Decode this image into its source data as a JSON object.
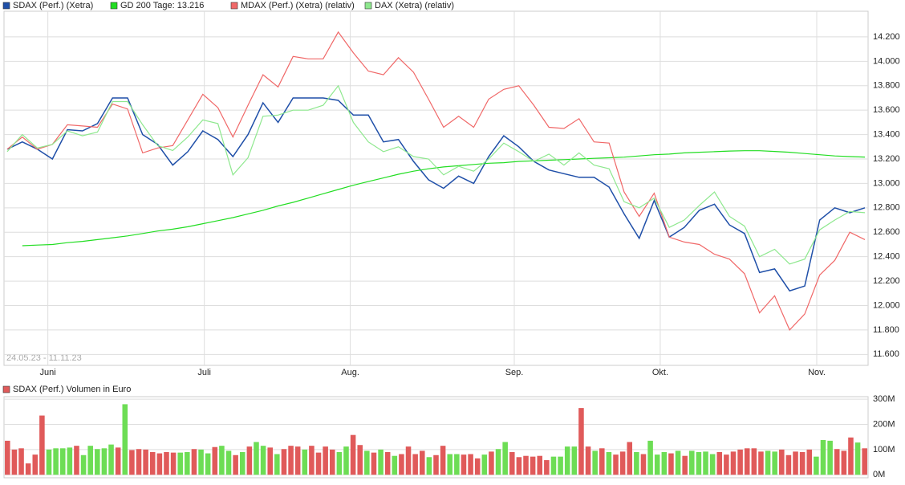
{
  "chart_data": [
    {
      "type": "line",
      "annotation": "24.05.23 - 11.11.23",
      "ylim": [
        11510,
        14410
      ],
      "yticks": [
        {
          "value": 11600,
          "label": "11.600"
        },
        {
          "value": 11800,
          "label": "11.800"
        },
        {
          "value": 12000,
          "label": "12.000"
        },
        {
          "value": 12200,
          "label": "12.200"
        },
        {
          "value": 12400,
          "label": "12.400"
        },
        {
          "value": 12600,
          "label": "12.600"
        },
        {
          "value": 12800,
          "label": "12.800"
        },
        {
          "value": 13000,
          "label": "13.000"
        },
        {
          "value": 13200,
          "label": "13.200"
        },
        {
          "value": 13400,
          "label": "13.400"
        },
        {
          "value": 13600,
          "label": "13.600"
        },
        {
          "value": 13800,
          "label": "13.800"
        },
        {
          "value": 14000,
          "label": "14.000"
        },
        {
          "value": 14200,
          "label": "14.200"
        }
      ],
      "xticks": [
        {
          "value": 2.7,
          "label": "Juni"
        },
        {
          "value": 13.1,
          "label": "Juli"
        },
        {
          "value": 22.8,
          "label": "Aug."
        },
        {
          "value": 33.7,
          "label": "Sep."
        },
        {
          "value": 43.4,
          "label": "Okt."
        },
        {
          "value": 53.8,
          "label": "Nov."
        }
      ],
      "grid": true,
      "series": [
        {
          "name": "SDAX (Perf.) (Xetra)",
          "color": "#1f4fa8",
          "values": [
            13280,
            13340,
            13280,
            13200,
            13440,
            13430,
            13490,
            13700,
            13700,
            13400,
            13320,
            13150,
            13260,
            13430,
            13360,
            13220,
            13400,
            13660,
            13500,
            13700,
            13700,
            13700,
            13680,
            13560,
            13560,
            13340,
            13360,
            13180,
            13030,
            12960,
            13060,
            13000,
            13220,
            13390,
            13300,
            13180,
            13110,
            13080,
            13050,
            13050,
            12970,
            12750,
            12550,
            12860,
            12560,
            12640,
            12780,
            12830,
            12660,
            12590,
            12270,
            12300,
            12120,
            12160,
            12700,
            12800,
            12760,
            12800
          ]
        },
        {
          "name": "GD 200 Tage: 13.216",
          "color": "#22dd22",
          "values": [
            null,
            12490,
            12495,
            12500,
            12515,
            12525,
            12540,
            12555,
            12570,
            12590,
            12610,
            12625,
            12645,
            12670,
            12695,
            12720,
            12750,
            12780,
            12815,
            12845,
            12880,
            12915,
            12950,
            12985,
            13015,
            13045,
            13075,
            13100,
            13120,
            13135,
            13145,
            13155,
            13165,
            13170,
            13180,
            13185,
            13190,
            13195,
            13200,
            13205,
            13210,
            13215,
            13225,
            13235,
            13240,
            13250,
            13255,
            13260,
            13265,
            13268,
            13268,
            13262,
            13255,
            13245,
            13235,
            13225,
            13220,
            13216
          ]
        },
        {
          "name": "MDAX (Perf.) (Xetra) (relativ)",
          "color": "#f06868",
          "values": [
            13280,
            13380,
            13280,
            13320,
            13480,
            13470,
            13460,
            13650,
            13610,
            13250,
            13290,
            13310,
            13520,
            13730,
            13620,
            13380,
            13640,
            13890,
            13790,
            14040,
            14020,
            14020,
            14240,
            14070,
            13920,
            13890,
            14030,
            13910,
            13690,
            13460,
            13550,
            13460,
            13690,
            13770,
            13800,
            13640,
            13460,
            13450,
            13530,
            13340,
            13330,
            12930,
            12730,
            12920,
            12560,
            12520,
            12500,
            12420,
            12380,
            12260,
            11940,
            12080,
            11800,
            11930,
            12250,
            12370,
            12600,
            12540
          ]
        },
        {
          "name": "DAX (Xetra) (relativ)",
          "color": "#8ee88e",
          "values": [
            13260,
            13400,
            13290,
            13320,
            13430,
            13390,
            13420,
            13670,
            13670,
            13480,
            13310,
            13270,
            13380,
            13520,
            13490,
            13070,
            13210,
            13550,
            13560,
            13600,
            13600,
            13640,
            13800,
            13500,
            13340,
            13260,
            13300,
            13220,
            13200,
            13070,
            13140,
            13100,
            13200,
            13330,
            13260,
            13180,
            13240,
            13150,
            13250,
            13150,
            13120,
            12850,
            12800,
            12880,
            12640,
            12700,
            12820,
            12930,
            12730,
            12650,
            12400,
            12460,
            12340,
            12380,
            12620,
            12700,
            12770,
            12760
          ]
        }
      ]
    },
    {
      "type": "bar",
      "series": [
        {
          "name": "SDAX (Perf.) Volumen in Euro",
          "color": "#e05a5a",
          "values": [
            135,
            100,
            105,
            45,
            80,
            235,
            100,
            105,
            105,
            108,
            115,
            78,
            115,
            102,
            105,
            120,
            108,
            280,
            98,
            102,
            100,
            90,
            85,
            90,
            88,
            88,
            90,
            102,
            100,
            85,
            110,
            115,
            95,
            78,
            90,
            112,
            130,
            115,
            108,
            82,
            102,
            115,
            112,
            100,
            115,
            88,
            112,
            100,
            90,
            112,
            158,
            118,
            95,
            88,
            100,
            90,
            75,
            82,
            112,
            82,
            95,
            70,
            78,
            115,
            82,
            82,
            80,
            82,
            65,
            80,
            92,
            102,
            130,
            90,
            70,
            75,
            72,
            75,
            58,
            72,
            72,
            112,
            112,
            265,
            112,
            95,
            105,
            90,
            80,
            92,
            130,
            90,
            82,
            135,
            80,
            90,
            85,
            95,
            75,
            95,
            90,
            92,
            82,
            90,
            80,
            92,
            100,
            105,
            105,
            92,
            95,
            92,
            100,
            78,
            92,
            90,
            100,
            72,
            138,
            135,
            102,
            95,
            148,
            128,
            105
          ]
        }
      ],
      "colors": [
        "#e05a5a",
        "#e05a5a",
        "#e05a5a",
        "#e05a5a",
        "#e05a5a",
        "#e05a5a",
        "#6ddd55",
        "#6ddd55",
        "#6ddd55",
        "#6ddd55",
        "#e05a5a",
        "#6ddd55",
        "#6ddd55",
        "#6ddd55",
        "#6ddd55",
        "#6ddd55",
        "#e05a5a",
        "#6ddd55",
        "#e05a5a",
        "#e05a5a",
        "#e05a5a",
        "#e05a5a",
        "#e05a5a",
        "#e05a5a",
        "#e05a5a",
        "#6ddd55",
        "#6ddd55",
        "#e05a5a",
        "#6ddd55",
        "#6ddd55",
        "#e05a5a",
        "#6ddd55",
        "#6ddd55",
        "#e05a5a",
        "#6ddd55",
        "#e05a5a",
        "#6ddd55",
        "#6ddd55",
        "#e05a5a",
        "#6ddd55",
        "#e05a5a",
        "#e05a5a",
        "#e05a5a",
        "#6ddd55",
        "#e05a5a",
        "#e05a5a",
        "#e05a5a",
        "#e05a5a",
        "#6ddd55",
        "#6ddd55",
        "#e05a5a",
        "#e05a5a",
        "#6ddd55",
        "#e05a5a",
        "#6ddd55",
        "#e05a5a",
        "#6ddd55",
        "#e05a5a",
        "#e05a5a",
        "#e05a5a",
        "#e05a5a",
        "#6ddd55",
        "#e05a5a",
        "#e05a5a",
        "#6ddd55",
        "#6ddd55",
        "#e05a5a",
        "#e05a5a",
        "#e05a5a",
        "#6ddd55",
        "#e05a5a",
        "#6ddd55",
        "#6ddd55",
        "#e05a5a",
        "#e05a5a",
        "#e05a5a",
        "#e05a5a",
        "#e05a5a",
        "#e05a5a",
        "#6ddd55",
        "#6ddd55",
        "#6ddd55",
        "#6ddd55",
        "#e05a5a",
        "#e05a5a",
        "#6ddd55",
        "#e05a5a",
        "#6ddd55",
        "#e05a5a",
        "#e05a5a",
        "#e05a5a",
        "#6ddd55",
        "#e05a5a",
        "#6ddd55",
        "#6ddd55",
        "#6ddd55",
        "#e05a5a",
        "#6ddd55",
        "#e05a5a",
        "#6ddd55",
        "#6ddd55",
        "#6ddd55",
        "#6ddd55",
        "#e05a5a",
        "#e05a5a",
        "#e05a5a",
        "#e05a5a",
        "#e05a5a",
        "#e05a5a",
        "#e05a5a",
        "#6ddd55",
        "#6ddd55",
        "#e05a5a",
        "#e05a5a",
        "#e05a5a",
        "#e05a5a",
        "#e05a5a",
        "#6ddd55",
        "#6ddd55",
        "#6ddd55",
        "#e05a5a",
        "#e05a5a",
        "#e05a5a",
        "#6ddd55",
        "#e05a5a"
      ],
      "ylim": [
        -12,
        310
      ],
      "yticks": [
        {
          "value": 0,
          "label": "0M"
        },
        {
          "value": 100,
          "label": "100M"
        },
        {
          "value": 200,
          "label": "200M"
        },
        {
          "value": 300,
          "label": "300M"
        }
      ]
    }
  ]
}
